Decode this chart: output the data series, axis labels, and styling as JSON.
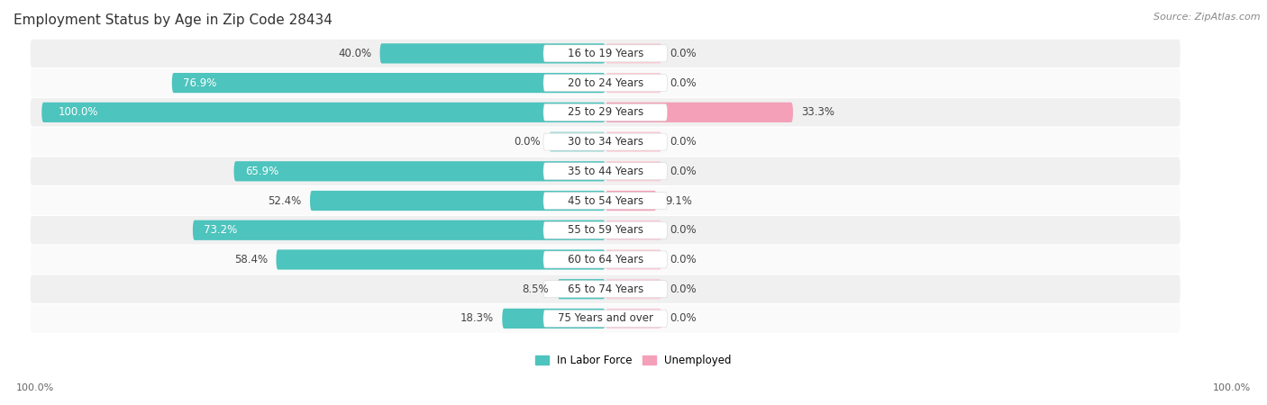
{
  "title": "Employment Status by Age in Zip Code 28434",
  "source": "Source: ZipAtlas.com",
  "categories": [
    "16 to 19 Years",
    "20 to 24 Years",
    "25 to 29 Years",
    "30 to 34 Years",
    "35 to 44 Years",
    "45 to 54 Years",
    "55 to 59 Years",
    "60 to 64 Years",
    "65 to 74 Years",
    "75 Years and over"
  ],
  "in_labor_force": [
    40.0,
    76.9,
    100.0,
    0.0,
    65.9,
    52.4,
    73.2,
    58.4,
    8.5,
    18.3
  ],
  "unemployed": [
    0.0,
    0.0,
    33.3,
    0.0,
    0.0,
    9.1,
    0.0,
    0.0,
    0.0,
    0.0
  ],
  "labor_force_color": "#4dc4bd",
  "unemployed_color": "#f4a0b8",
  "labor_force_zero_color": "#a8ddd9",
  "unemployed_zero_color": "#f9cdd8",
  "row_bg_odd": "#f0f0f0",
  "row_bg_even": "#fafafa",
  "label_pill_bg": "#ffffff",
  "title_fontsize": 11,
  "source_fontsize": 8,
  "label_fontsize": 8.5,
  "axis_label_fontsize": 8,
  "legend_fontsize": 8.5,
  "max_value": 100.0,
  "x_left_label": "100.0%",
  "x_right_label": "100.0%",
  "zero_bar_width": 10.0
}
